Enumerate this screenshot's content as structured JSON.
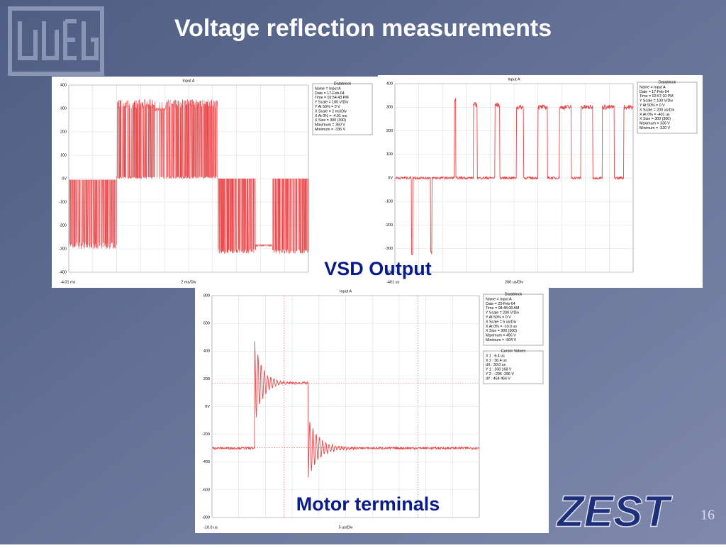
{
  "title": "Voltage reflection measurements",
  "caption_top": "VSD Output",
  "caption_bottom": "Motor terminals",
  "page_number": "16",
  "logo_right": "ZEST",
  "scopes": [
    {
      "title": "Input A",
      "yticks": [
        "400",
        "300",
        "200",
        "100",
        "0V",
        "-100",
        "-200",
        "-300",
        "-400"
      ],
      "x_start": "-4.01 ms",
      "x_scale": "2 ms/Div",
      "datablock_title": "Datablock",
      "datablock": [
        "Name = Input A",
        "Date = 17-Feb-04",
        "Time = 02:54:43 PM",
        "Y Scale = 100 V/Div",
        "Y At 50% = 0 V",
        "X Scale = 2 ms/Div",
        "X At 0% = -4.01 ms",
        "X Size = 300 (300)",
        "Maximum = 360 V",
        "Minimum = -336 V"
      ]
    },
    {
      "title": "Input A",
      "yticks": [
        "400",
        "300",
        "200",
        "100",
        "0V",
        "-100",
        "-200",
        "-300",
        "-400"
      ],
      "x_start": "-401 us",
      "x_scale": "200 us/Div",
      "datablock_title": "Datablock",
      "datablock": [
        "Name = Input A",
        "Date = 17-Feb-04",
        "Time = 02:57:10 PM",
        "Y Scale = 100 V/Div",
        "Y At 50% = 0 V",
        "X Scale = 200 us/Div",
        "X At 0% = -401 us",
        "X Size = 300 (300)",
        "Maximum = 336 V",
        "Minimum = -320 V"
      ]
    },
    {
      "title": "Input A",
      "yticks": [
        "800",
        "600",
        "400",
        "200",
        "0V",
        "-200",
        "-400",
        "-600",
        "-800"
      ],
      "x_start": "-10.0 us",
      "x_scale": "5 us/Div",
      "datablock_title": "Datablock",
      "datablock": [
        "Name = Input A",
        "Date = 23-Feb-04",
        "Time = 08:48:08 AM",
        "Y Scale = 200 V/Div",
        "Y At 50% = 0 V",
        "X Scale = 5 us/Div",
        "X At 0% = -10.0 us",
        "X Size = 300 (300)",
        "Maximum = 456 V",
        "Minimum = -504 V"
      ],
      "cursor_title": "Cursor Values",
      "cursor": [
        "X 1 : 6.4 us",
        "X 2 : 36.4 us",
        "dX : 30.0 us",
        "Y 1 : 168 168 V",
        "Y 2 : -296 -296 V",
        "dY : 464 464 V"
      ]
    }
  ]
}
